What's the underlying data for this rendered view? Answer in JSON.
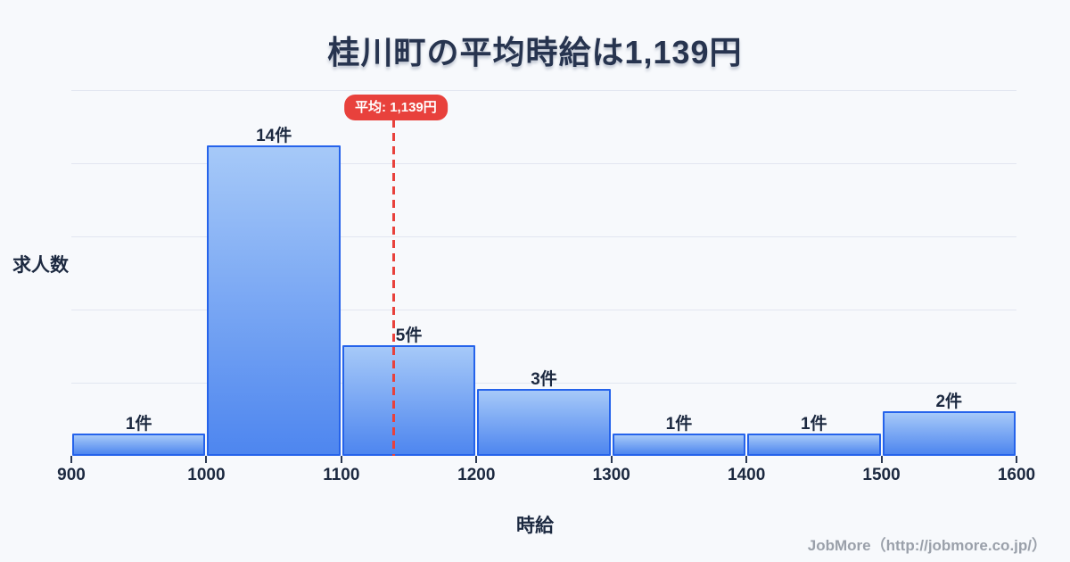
{
  "page": {
    "title": "桂川町の平均時給は1,139円",
    "footer": "JobMore（http://jobmore.co.jp/）"
  },
  "chart_data": {
    "type": "bar",
    "subtype": "histogram",
    "title": "桂川町の平均時給は1,139円",
    "xlabel": "時給",
    "ylabel": "求人数",
    "categories": [
      "900-1000",
      "1000-1100",
      "1100-1200",
      "1200-1300",
      "1300-1400",
      "1400-1500",
      "1500-1600"
    ],
    "bin_edges": [
      900,
      1000,
      1100,
      1200,
      1300,
      1400,
      1500,
      1600
    ],
    "values": [
      1,
      14,
      5,
      3,
      1,
      1,
      2
    ],
    "value_labels": [
      "1件",
      "14件",
      "5件",
      "3件",
      "1件",
      "1件",
      "2件"
    ],
    "x_tick_labels": [
      "900",
      "1000",
      "1100",
      "1200",
      "1300",
      "1400",
      "1500",
      "1600"
    ],
    "xlim": [
      900,
      1600
    ],
    "ylim": [
      0,
      16.5
    ],
    "grid": "horizontal",
    "gridline_count": 5,
    "legend": false,
    "mean": {
      "value": 1139,
      "label": "平均: 1,139円"
    }
  },
  "colors": {
    "background": "#f7f9fc",
    "bar_fill_top": "#a6c9f8",
    "bar_fill_bottom": "#4e86ef",
    "bar_border": "#2563eb",
    "grid_line": "#e2e6f0",
    "title_text": "#27344f",
    "axis_text": "#1c2940",
    "mean_line": "#e8413c",
    "mean_badge_bg": "#e8413c",
    "mean_badge_text": "#ffffff",
    "footer_text": "#9aa0aa"
  }
}
